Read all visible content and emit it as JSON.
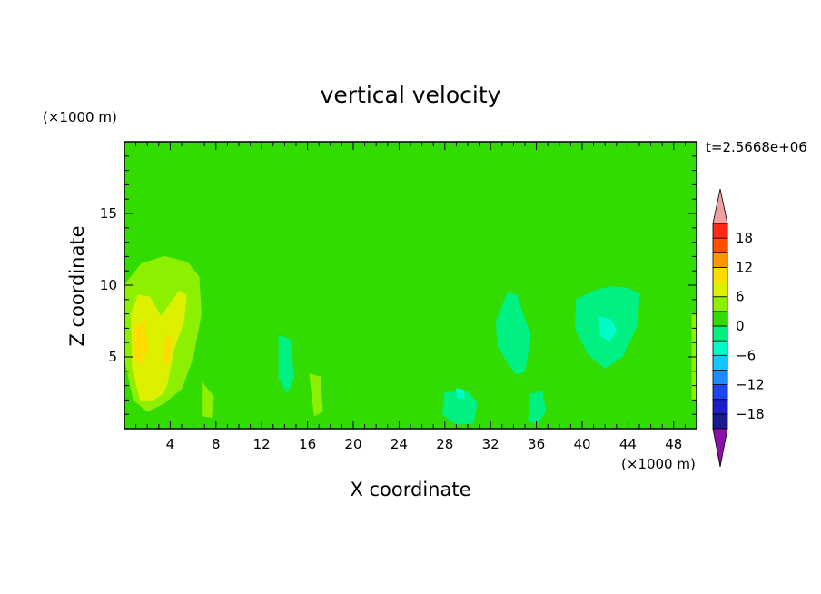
{
  "chart_data": {
    "type": "heatmap",
    "title": "vertical velocity",
    "xlabel": "X coordinate",
    "ylabel": "Z coordinate",
    "x_unit_note": "(×1000 m)",
    "y_unit_note": "(×1000 m)",
    "time_label": "t=2.5668e+06",
    "xlim": [
      0,
      50
    ],
    "ylim": [
      0,
      20
    ],
    "x_ticks": [
      4,
      8,
      12,
      16,
      20,
      24,
      28,
      32,
      36,
      40,
      44,
      48
    ],
    "y_ticks": [
      5,
      10,
      15
    ],
    "grid": false,
    "colorbar": {
      "levels": [
        -21,
        -18,
        -15,
        -12,
        -9,
        -6,
        -3,
        0,
        3,
        6,
        9,
        12,
        15,
        18,
        21
      ],
      "labels": [
        18,
        12,
        6,
        0,
        -6,
        -12,
        -18
      ],
      "colors": [
        "#5a189a",
        "#1a1a8c",
        "#1e1ec8",
        "#1e46f0",
        "#1e8cff",
        "#14c8ff",
        "#00fac8",
        "#00f082",
        "#32dc00",
        "#8cf000",
        "#dcf000",
        "#ffdc00",
        "#ff9600",
        "#ff5000",
        "#ff2814",
        "#f0a0a0"
      ],
      "extend": "both",
      "under_color": "#8c0faa",
      "over_color": "#f0a0a0"
    },
    "features": [
      {
        "type": "region",
        "level": 1.5,
        "x": [
          0,
          1.5,
          3.5,
          6,
          8,
          8.5,
          8.4,
          8,
          8.2,
          6.5,
          5,
          2.5,
          0.5,
          0
        ],
        "y": [
          17,
          19,
          20,
          20,
          18.5,
          17,
          14,
          11,
          5,
          2.5,
          1,
          0.5,
          1.5,
          5
        ]
      },
      {
        "type": "region",
        "level": 1.5,
        "x": [
          8,
          9.5,
          11.5,
          12.5,
          12,
          11,
          10,
          8.5
        ],
        "y": [
          20,
          20,
          19.4,
          18.5,
          17.6,
          17,
          16.5,
          18
        ]
      },
      {
        "type": "region",
        "level": 4.5,
        "x": [
          0,
          1.5,
          3.5,
          5.5,
          6.5,
          6.7,
          6,
          5,
          3.5,
          2,
          0.8,
          0
        ],
        "y": [
          10,
          11.5,
          12,
          11.6,
          10.6,
          8,
          5,
          2.8,
          1.8,
          1.2,
          2,
          5
        ]
      },
      {
        "type": "region",
        "level": 7.5,
        "x": [
          0.6,
          1.2,
          2.2,
          3.2,
          4.8,
          5.4,
          5.2,
          4.3,
          3.7,
          3.3,
          2.5,
          1.4,
          0.7
        ],
        "y": [
          8,
          9.3,
          9.2,
          7.8,
          9.6,
          9.3,
          7.5,
          5.5,
          3,
          2.4,
          2,
          2,
          4.2
        ]
      },
      {
        "type": "region",
        "level": 10.5,
        "x": [
          0.8,
          1.8,
          2,
          1.5,
          0.9
        ],
        "y": [
          7,
          7.5,
          5.5,
          4.5,
          5
        ]
      },
      {
        "type": "region",
        "level": 10.5,
        "x": [
          3.6,
          4.1,
          3.9,
          3.5
        ],
        "y": [
          6.5,
          6.3,
          4.6,
          4.5
        ]
      },
      {
        "type": "region",
        "level": 1.5,
        "x": [
          13.5,
          15.5,
          18,
          21,
          23.5,
          25,
          25.2,
          24,
          22.5,
          20,
          17.5,
          15,
          13.6
        ],
        "y": [
          15.4,
          16.5,
          17,
          17.2,
          16.6,
          16.6,
          15,
          14.6,
          14.9,
          15.8,
          14.6,
          13.8,
          14.5
        ]
      },
      {
        "type": "region",
        "level": 1.5,
        "x": [
          26,
          29,
          31.5,
          33,
          33.2,
          31.5,
          30.5,
          30,
          29,
          28,
          27.2,
          26.5,
          25.8
        ],
        "y": [
          16.6,
          17.2,
          16.6,
          16,
          13.2,
          12.2,
          11,
          10,
          10.8,
          13,
          14.4,
          15,
          15.8
        ]
      },
      {
        "type": "region",
        "level": 1.5,
        "x": [
          35.5,
          36.8,
          37.3,
          36.5,
          35.8
        ],
        "y": [
          15.6,
          15.6,
          14.8,
          14.3,
          14.6
        ]
      },
      {
        "type": "region",
        "level": 1.5,
        "x": [
          35.5,
          36.5,
          37.5,
          38,
          37.8,
          37.4,
          36.5,
          35.8,
          35.4
        ],
        "y": [
          11.2,
          12.2,
          11.5,
          10,
          8,
          6.5,
          6.2,
          7.5,
          9.5
        ]
      },
      {
        "type": "region",
        "level": 1.5,
        "x": [
          47,
          48.5,
          50,
          50,
          48.6,
          47.2,
          46.5,
          46.8
        ],
        "y": [
          14.5,
          15,
          15,
          0,
          0.3,
          2,
          6,
          10
        ]
      },
      {
        "type": "region",
        "level": 4.5,
        "x": [
          49.6,
          50,
          50,
          49.6
        ],
        "y": [
          8,
          8,
          2,
          2
        ]
      },
      {
        "type": "region",
        "level": 1.5,
        "x": [
          7.5,
          9.5,
          10.8,
          11.7,
          12,
          11.5,
          10.5,
          9.5,
          8.5,
          7.3
        ],
        "y": [
          5.6,
          4.6,
          4,
          3,
          1,
          0.3,
          0.2,
          0.4,
          1.2,
          3.5
        ]
      },
      {
        "type": "region",
        "level": 4.5,
        "x": [
          6.8,
          7.8,
          7.6,
          6.8
        ],
        "y": [
          3.2,
          2.2,
          0.8,
          0.9
        ]
      },
      {
        "type": "region",
        "level": 1.5,
        "x": [
          15.8,
          18.2,
          19.2,
          19.2,
          18,
          16.5,
          15.7
        ],
        "y": [
          5.2,
          5,
          4,
          1.2,
          0.2,
          0.2,
          2.5
        ]
      },
      {
        "type": "region",
        "level": 4.5,
        "x": [
          16.2,
          17.1,
          17.3,
          16.6
        ],
        "y": [
          3.8,
          3.6,
          1.2,
          0.9
        ]
      },
      {
        "type": "region",
        "level": 1.5,
        "x": [
          20,
          21,
          21.5,
          21,
          20
        ],
        "y": [
          8.4,
          8.6,
          7.9,
          7.4,
          7.5
        ]
      },
      {
        "type": "region",
        "level": 1.5,
        "x": [
          21,
          23.5,
          25.5,
          27,
          26.5,
          24,
          22.5,
          21.2
        ],
        "y": [
          3.5,
          4.2,
          4,
          3.2,
          1.5,
          0.2,
          0.2,
          1.5
        ]
      },
      {
        "type": "region",
        "level": 1.5,
        "x": [
          31.5,
          33.5,
          34.3,
          34,
          33,
          32,
          31.2
        ],
        "y": [
          4.2,
          4,
          3,
          1.5,
          0.2,
          0.2,
          1.8
        ]
      },
      {
        "type": "region",
        "level": 1.5,
        "x": [
          40.5,
          42.5,
          44,
          44,
          42.5,
          40.8
        ],
        "y": [
          2.6,
          2.7,
          2.2,
          0.5,
          0.2,
          0.8
        ]
      },
      {
        "type": "region",
        "level": 1.5,
        "x": [
          45.5,
          47.2,
          48,
          47.5,
          46.3,
          45.2
        ],
        "y": [
          6,
          6.5,
          5,
          3.5,
          3,
          4.2
        ]
      },
      {
        "type": "region",
        "level": -1.5,
        "x": [
          32.5,
          33.5,
          34.3,
          34.8,
          35.5,
          35,
          34.2,
          33.5,
          32.6
        ],
        "y": [
          7.5,
          9.5,
          9.3,
          8,
          6.5,
          4,
          3.8,
          4.6,
          5.8
        ]
      },
      {
        "type": "region",
        "level": -1.5,
        "x": [
          39.5,
          41,
          42.5,
          44,
          45,
          44.8,
          43.5,
          42,
          40.5,
          39.4
        ],
        "y": [
          9,
          9.6,
          9.9,
          9.8,
          9.4,
          7.2,
          5,
          4.2,
          5.2,
          7
        ]
      },
      {
        "type": "region",
        "level": -4.5,
        "x": [
          41.5,
          42.5,
          43,
          42.4,
          41.6
        ],
        "y": [
          7.8,
          7.6,
          6.8,
          6.1,
          6.5
        ]
      },
      {
        "type": "region",
        "level": -1.5,
        "x": [
          13.5,
          14.5,
          14.8,
          14.2,
          13.5
        ],
        "y": [
          6.5,
          6.2,
          3.5,
          2.5,
          3.5
        ]
      },
      {
        "type": "region",
        "level": -1.5,
        "x": [
          28,
          30,
          30.8,
          30.5,
          29,
          27.8
        ],
        "y": [
          2.5,
          2.6,
          1.8,
          0.4,
          0.3,
          1
        ]
      },
      {
        "type": "region",
        "level": -1.5,
        "x": [
          35.5,
          36.5,
          36.8,
          36,
          35.3
        ],
        "y": [
          2.4,
          2.6,
          1.2,
          0.3,
          0.6
        ]
      },
      {
        "type": "region",
        "level": -4.5,
        "x": [
          29,
          29.6,
          29.7,
          29.1
        ],
        "y": [
          2.8,
          2.7,
          2.1,
          2.2
        ]
      }
    ]
  }
}
